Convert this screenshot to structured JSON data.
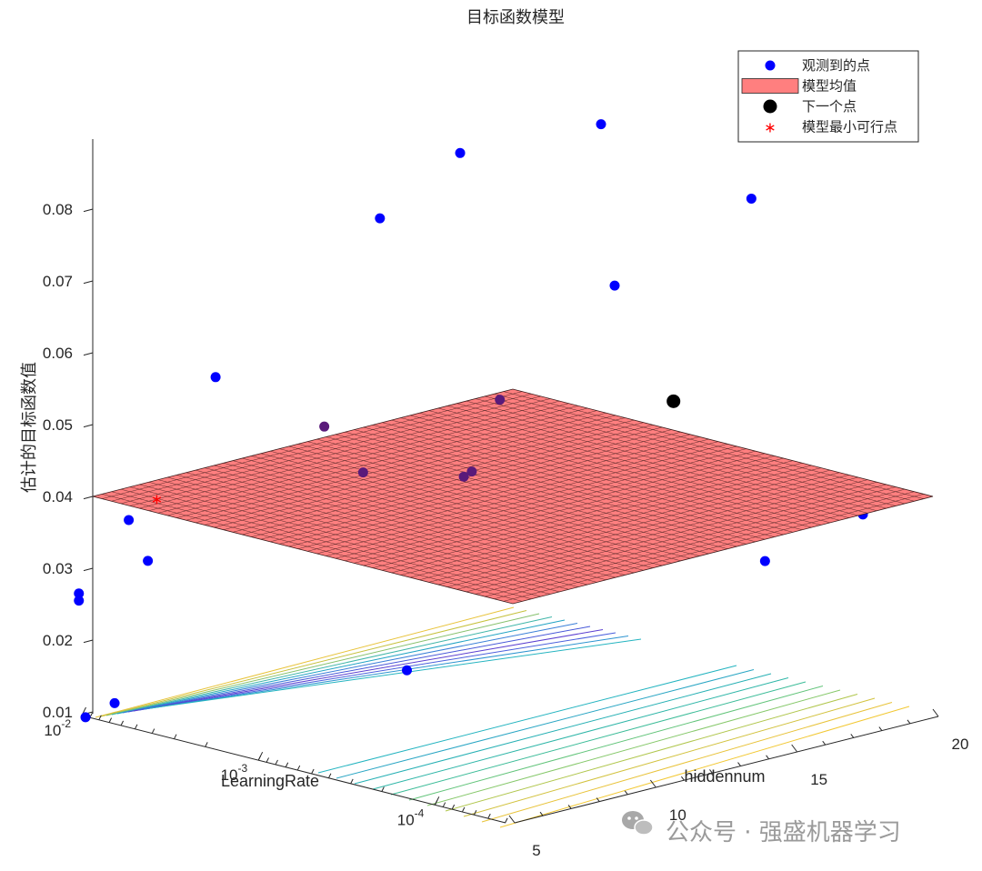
{
  "chart_data": {
    "type": "scatter3d-surface",
    "title": "目标函数模型",
    "xlabel": "LearningRate",
    "ylabel": "hiddennum",
    "zlabel": "估计的目标函数值",
    "x_scale": "log",
    "x_ticks": [
      {
        "value": 0.01,
        "base": "10",
        "exp": "-2"
      },
      {
        "value": 0.001,
        "base": "10",
        "exp": "-3"
      },
      {
        "value": 0.0001,
        "base": "10",
        "exp": "-4"
      }
    ],
    "y_ticks": [
      "5",
      "10",
      "15",
      "20"
    ],
    "z_ticks": [
      "0.01",
      "0.02",
      "0.03",
      "0.04",
      "0.05",
      "0.06",
      "0.07",
      "0.08"
    ],
    "zlim": [
      0.01,
      0.09
    ],
    "surface": {
      "name": "模型均值",
      "color": "#ff7f7f",
      "z_level": 0.04
    },
    "legend": {
      "position": "top-right",
      "entries": [
        {
          "label": "观测到的点",
          "marker": "dot",
          "color": "#0000ff"
        },
        {
          "label": "模型均值",
          "marker": "patch",
          "color": "#ff7f7f"
        },
        {
          "label": "下一个点",
          "marker": "dot-large",
          "color": "#000000"
        },
        {
          "label": "模型最小可行点",
          "marker": "asterisk",
          "color": "#ff0000"
        }
      ]
    },
    "observed_points": [
      {
        "lr": 0.02,
        "h": 20,
        "z": 0.071
      },
      {
        "lr": 0.0063,
        "h": 14,
        "z": 0.071
      },
      {
        "lr": 0.0015,
        "h": 18,
        "z": 0.084
      },
      {
        "lr": 0.0003,
        "h": 19,
        "z": 0.077
      },
      {
        "lr": 0.0006,
        "h": 16,
        "z": 0.066
      },
      {
        "lr": 0.006,
        "h": 8,
        "z": 0.055
      },
      {
        "lr": 0.003,
        "h": 10,
        "z": 0.048
      },
      {
        "lr": 0.0009,
        "h": 13,
        "z": 0.052
      },
      {
        "lr": 0.0018,
        "h": 10,
        "z": 0.043
      },
      {
        "lr": 0.0009,
        "h": 12,
        "z": 0.043
      },
      {
        "lr": 0.001,
        "h": 12,
        "z": 0.042
      },
      {
        "lr": 0.009,
        "h": 6,
        "z": 0.036
      },
      {
        "lr": 0.007,
        "h": 6,
        "z": 0.031
      },
      {
        "lr": 0.012,
        "h": 5,
        "z": 0.026
      },
      {
        "lr": 0.012,
        "h": 5,
        "z": 0.025
      },
      {
        "lr": 0.0007,
        "h": 9,
        "z": 0.019
      },
      {
        "lr": 0.0075,
        "h": 5,
        "z": 0.012
      },
      {
        "lr": 0.011,
        "h": 5,
        "z": 0.009
      },
      {
        "lr": 0.00012,
        "h": 17,
        "z": 0.031
      },
      {
        "lr": 0.0001,
        "h": 20,
        "z": 0.035
      }
    ],
    "next_point": {
      "lr": 0.0004,
      "h": 17,
      "z": 0.05
    },
    "min_feasible_point": {
      "lr": 0.009,
      "h": 7,
      "z": 0.038
    }
  },
  "watermark": {
    "icon": "wechat-icon",
    "text": "公众号 · 强盛机器学习"
  }
}
